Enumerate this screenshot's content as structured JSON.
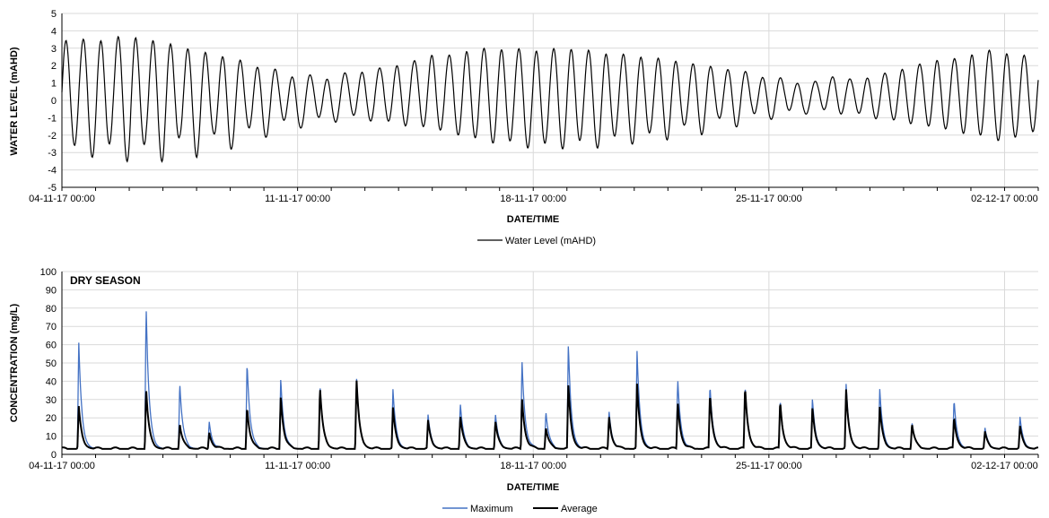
{
  "chart_data": [
    {
      "type": "line",
      "title": "",
      "xlabel": "DATE/TIME",
      "ylabel": "WATER LEVEL (mAHD)",
      "ylim": [
        -5,
        5
      ],
      "yticks": [
        "5",
        "4",
        "3",
        "2",
        "1",
        "0",
        "-1",
        "-2",
        "-3",
        "-4",
        "-5"
      ],
      "xlim": [
        "2017-11-04 00:00",
        "2017-12-03 00:00"
      ],
      "xticks": [
        "04-11-17 00:00",
        "11-11-17 00:00",
        "18-11-17 00:00",
        "25-11-17 00:00",
        "02-12-17 00:00"
      ],
      "grid": true,
      "legend_position": "bottom",
      "series": [
        {
          "name": "Water Level (mAHD)",
          "color": "#000000",
          "x": [
            "2017-11-04 00:00",
            "2017-11-04 12:00",
            "2017-11-05 00:00",
            "2017-11-05 12:00",
            "2017-11-06 00:00",
            "2017-11-06 12:00",
            "2017-11-07 00:00",
            "2017-11-07 12:00",
            "2017-11-08 00:00",
            "2017-11-08 12:00",
            "2017-11-09 00:00",
            "2017-11-09 12:00",
            "2017-11-10 00:00",
            "2017-11-10 12:00",
            "2017-11-11 00:00",
            "2017-11-11 12:00",
            "2017-11-12 00:00",
            "2017-11-12 12:00",
            "2017-11-13 00:00",
            "2017-11-13 12:00",
            "2017-11-14 00:00",
            "2017-11-14 12:00",
            "2017-11-15 00:00",
            "2017-11-15 12:00",
            "2017-11-16 00:00",
            "2017-11-16 12:00",
            "2017-11-17 00:00",
            "2017-11-17 12:00",
            "2017-11-18 00:00",
            "2017-11-18 12:00",
            "2017-11-19 00:00",
            "2017-11-19 12:00",
            "2017-11-20 00:00",
            "2017-11-20 12:00",
            "2017-11-21 00:00",
            "2017-11-21 12:00",
            "2017-11-22 00:00",
            "2017-11-22 12:00",
            "2017-11-23 00:00",
            "2017-11-23 12:00",
            "2017-11-24 00:00",
            "2017-11-24 12:00",
            "2017-11-25 00:00",
            "2017-11-25 12:00",
            "2017-11-26 00:00",
            "2017-11-26 12:00",
            "2017-11-27 00:00",
            "2017-11-27 12:00",
            "2017-11-28 00:00",
            "2017-11-28 12:00",
            "2017-11-29 00:00",
            "2017-11-29 12:00",
            "2017-11-30 00:00",
            "2017-11-30 12:00",
            "2017-12-01 00:00",
            "2017-12-01 12:00",
            "2017-12-02 00:00",
            "2017-12-02 12:00"
          ],
          "high": [
            3.4,
            3.6,
            3.3,
            3.7,
            3.6,
            3.6,
            3.2,
            3.3,
            2.6,
            2.9,
            2.2,
            2.4,
            1.6,
            1.9,
            1.1,
            1.6,
            1.1,
            1.7,
            1.6,
            1.9,
            2.0,
            2.3,
            2.6,
            2.6,
            2.8,
            3.0,
            2.9,
            3.0,
            2.8,
            3.0,
            2.9,
            3.0,
            2.6,
            2.8,
            2.4,
            2.6,
            2.2,
            2.3,
            1.9,
            2.0,
            1.6,
            1.7,
            1.1,
            1.4,
            0.8,
            1.2,
            1.4,
            1.2,
            1.3,
            1.6,
            1.8,
            2.1,
            2.3,
            2.4,
            2.6,
            2.9,
            2.7,
            2.6
          ],
          "low": [
            -3.2,
            -2.4,
            -3.5,
            -2.3,
            -3.7,
            -2.4,
            -3.6,
            -2.1,
            -3.3,
            -1.9,
            -2.9,
            -1.5,
            -2.3,
            -1.0,
            -1.8,
            -0.8,
            -1.5,
            -0.6,
            -1.4,
            -0.8,
            -1.8,
            -1.0,
            -2.1,
            -1.3,
            -2.6,
            -1.8,
            -2.9,
            -2.0,
            -3.1,
            -2.2,
            -3.0,
            -2.1,
            -2.9,
            -1.9,
            -2.6,
            -1.8,
            -2.3,
            -1.4,
            -2.0,
            -1.0,
            -1.6,
            -0.7,
            -1.2,
            -0.5,
            -0.9,
            -0.4,
            -0.9,
            -0.5,
            -1.2,
            -0.8,
            -1.6,
            -1.0,
            -2.0,
            -1.3,
            -2.4,
            -1.7,
            -2.7,
            -1.8
          ]
        }
      ]
    },
    {
      "type": "line",
      "title": "",
      "annotation": "DRY SEASON",
      "xlabel": "DATE/TIME",
      "ylabel": "CONCENTRATION (mg/L)",
      "ylim": [
        0,
        100
      ],
      "yticks": [
        "100",
        "90",
        "80",
        "70",
        "60",
        "50",
        "40",
        "30",
        "20",
        "10",
        "0"
      ],
      "xlim": [
        "2017-11-04 00:00",
        "2017-12-03 00:00"
      ],
      "xticks": [
        "04-11-17 00:00",
        "11-11-17 00:00",
        "18-11-17 00:00",
        "25-11-17 00:00",
        "02-12-17 00:00"
      ],
      "grid": true,
      "legend_position": "bottom",
      "baseline": 3,
      "series": [
        {
          "name": "Maximum",
          "color": "#4472c4",
          "x": [
            "2017-11-04 12:00",
            "2017-11-06 12:00",
            "2017-11-07 12:00",
            "2017-11-08 09:00",
            "2017-11-09 12:00",
            "2017-11-10 12:00",
            "2017-11-11 16:00",
            "2017-11-12 18:00",
            "2017-11-13 20:00",
            "2017-11-14 21:00",
            "2017-11-15 20:00",
            "2017-11-16 21:00",
            "2017-11-17 16:00",
            "2017-11-18 09:00",
            "2017-11-19 01:00",
            "2017-11-20 06:00",
            "2017-11-21 02:00",
            "2017-11-22 07:00",
            "2017-11-23 06:00",
            "2017-11-24 07:00",
            "2017-11-25 08:00",
            "2017-11-26 07:00",
            "2017-11-27 07:00",
            "2017-11-28 07:00",
            "2017-11-29 06:00",
            "2017-11-30 12:00",
            "2017-12-01 10:00",
            "2017-12-02 11:00"
          ],
          "peaks": [
            61,
            82,
            40,
            18,
            51,
            42,
            38,
            42,
            35,
            21,
            28,
            22,
            52,
            24,
            60,
            24,
            56,
            42,
            38,
            38,
            30,
            30,
            38,
            36,
            18,
            30,
            14,
            20
          ]
        },
        {
          "name": "Average",
          "color": "#000000",
          "x": [
            "2017-11-04 12:00",
            "2017-11-06 12:00",
            "2017-11-07 12:00",
            "2017-11-08 09:00",
            "2017-11-09 12:00",
            "2017-11-10 12:00",
            "2017-11-11 16:00",
            "2017-11-12 18:00",
            "2017-11-13 20:00",
            "2017-11-14 21:00",
            "2017-11-15 20:00",
            "2017-11-16 21:00",
            "2017-11-17 16:00",
            "2017-11-18 09:00",
            "2017-11-19 01:00",
            "2017-11-20 06:00",
            "2017-11-21 02:00",
            "2017-11-22 07:00",
            "2017-11-23 06:00",
            "2017-11-24 07:00",
            "2017-11-25 08:00",
            "2017-11-26 07:00",
            "2017-11-27 07:00",
            "2017-11-28 07:00",
            "2017-11-29 06:00",
            "2017-11-30 12:00",
            "2017-12-01 10:00",
            "2017-12-02 11:00"
          ],
          "peaks": [
            26,
            36,
            17,
            12,
            26,
            32,
            37,
            41,
            25,
            18,
            21,
            18,
            31,
            15,
            38,
            21,
            38,
            29,
            33,
            37,
            29,
            25,
            35,
            26,
            17,
            20,
            12,
            15
          ]
        }
      ]
    }
  ]
}
